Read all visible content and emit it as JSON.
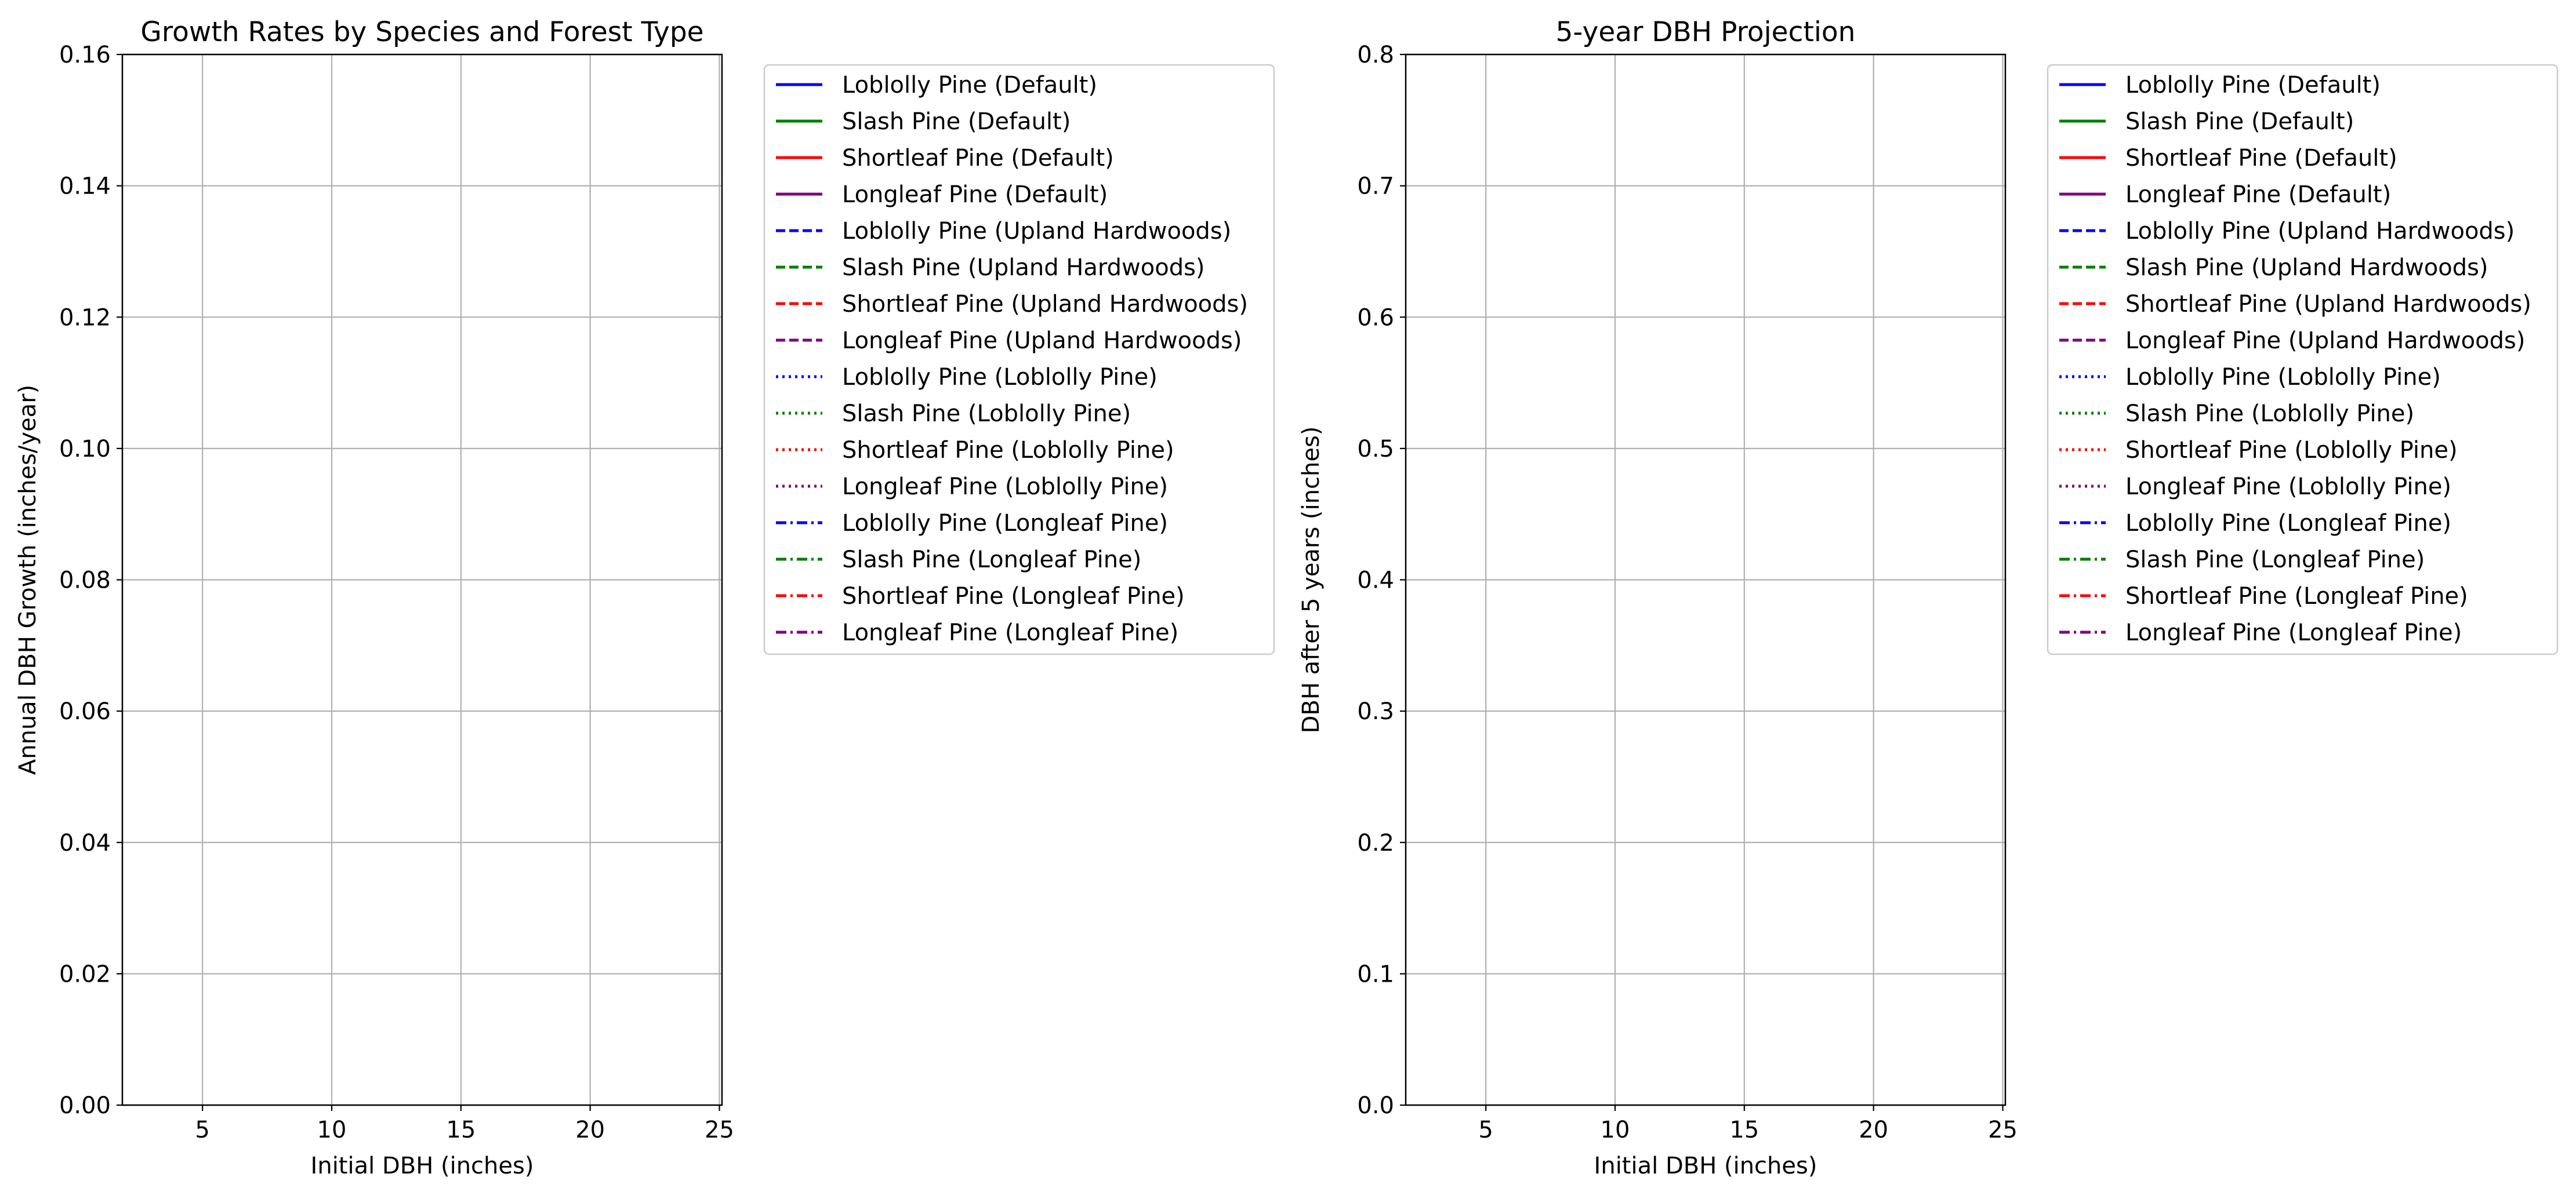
{
  "chart_data": [
    {
      "type": "line",
      "title": "Growth Rates by Species and Forest Type",
      "xlabel": "Initial DBH (inches)",
      "ylabel": "Annual DBH Growth (inches/year)",
      "xlim": [
        1.9,
        25.1
      ],
      "ylim": [
        0,
        0.16
      ],
      "xticks": [
        5,
        10,
        15,
        20,
        25
      ],
      "xtick_labels": [
        "5",
        "10",
        "15",
        "20",
        "25"
      ],
      "yticks": [
        0,
        0.02,
        0.04,
        0.06,
        0.08,
        0.1,
        0.12,
        0.14,
        0.16
      ],
      "ytick_labels": [
        "0.00",
        "0.02",
        "0.04",
        "0.06",
        "0.08",
        "0.10",
        "0.12",
        "0.14",
        "0.16"
      ],
      "grid": true,
      "legend_position": "outside-upper-right",
      "series": [
        {
          "name": "Loblolly Pine (Default)",
          "color": "#0000ff",
          "style": "solid",
          "values": []
        },
        {
          "name": "Slash Pine (Default)",
          "color": "#008000",
          "style": "solid",
          "values": []
        },
        {
          "name": "Shortleaf Pine (Default)",
          "color": "#ff0000",
          "style": "solid",
          "values": []
        },
        {
          "name": "Longleaf Pine (Default)",
          "color": "#800080",
          "style": "solid",
          "values": []
        },
        {
          "name": "Loblolly Pine (Upland Hardwoods)",
          "color": "#0000ff",
          "style": "dashed",
          "values": []
        },
        {
          "name": "Slash Pine (Upland Hardwoods)",
          "color": "#008000",
          "style": "dashed",
          "values": []
        },
        {
          "name": "Shortleaf Pine (Upland Hardwoods)",
          "color": "#ff0000",
          "style": "dashed",
          "values": []
        },
        {
          "name": "Longleaf Pine (Upland Hardwoods)",
          "color": "#800080",
          "style": "dashed",
          "values": []
        },
        {
          "name": "Loblolly Pine (Loblolly Pine)",
          "color": "#0000ff",
          "style": "dotted",
          "values": []
        },
        {
          "name": "Slash Pine (Loblolly Pine)",
          "color": "#008000",
          "style": "dotted",
          "values": []
        },
        {
          "name": "Shortleaf Pine (Loblolly Pine)",
          "color": "#ff0000",
          "style": "dotted",
          "values": []
        },
        {
          "name": "Longleaf Pine (Loblolly Pine)",
          "color": "#800080",
          "style": "dotted",
          "values": []
        },
        {
          "name": "Loblolly Pine (Longleaf Pine)",
          "color": "#0000ff",
          "style": "dashdot",
          "values": []
        },
        {
          "name": "Slash Pine (Longleaf Pine)",
          "color": "#008000",
          "style": "dashdot",
          "values": []
        },
        {
          "name": "Shortleaf Pine (Longleaf Pine)",
          "color": "#ff0000",
          "style": "dashdot",
          "values": []
        },
        {
          "name": "Longleaf Pine (Longleaf Pine)",
          "color": "#800080",
          "style": "dashdot",
          "values": []
        }
      ]
    },
    {
      "type": "line",
      "title": "5-year DBH Projection",
      "xlabel": "Initial DBH (inches)",
      "ylabel": "DBH after 5 years (inches)",
      "xlim": [
        1.9,
        25.1
      ],
      "ylim": [
        0,
        0.8
      ],
      "xticks": [
        5,
        10,
        15,
        20,
        25
      ],
      "xtick_labels": [
        "5",
        "10",
        "15",
        "20",
        "25"
      ],
      "yticks": [
        0,
        0.1,
        0.2,
        0.3,
        0.4,
        0.5,
        0.6,
        0.7,
        0.8
      ],
      "ytick_labels": [
        "0.0",
        "0.1",
        "0.2",
        "0.3",
        "0.4",
        "0.5",
        "0.6",
        "0.7",
        "0.8"
      ],
      "grid": true,
      "legend_position": "outside-upper-right",
      "series": [
        {
          "name": "Loblolly Pine (Default)",
          "color": "#0000ff",
          "style": "solid",
          "values": []
        },
        {
          "name": "Slash Pine (Default)",
          "color": "#008000",
          "style": "solid",
          "values": []
        },
        {
          "name": "Shortleaf Pine (Default)",
          "color": "#ff0000",
          "style": "solid",
          "values": []
        },
        {
          "name": "Longleaf Pine (Default)",
          "color": "#800080",
          "style": "solid",
          "values": []
        },
        {
          "name": "Loblolly Pine (Upland Hardwoods)",
          "color": "#0000ff",
          "style": "dashed",
          "values": []
        },
        {
          "name": "Slash Pine (Upland Hardwoods)",
          "color": "#008000",
          "style": "dashed",
          "values": []
        },
        {
          "name": "Shortleaf Pine (Upland Hardwoods)",
          "color": "#ff0000",
          "style": "dashed",
          "values": []
        },
        {
          "name": "Longleaf Pine (Upland Hardwoods)",
          "color": "#800080",
          "style": "dashed",
          "values": []
        },
        {
          "name": "Loblolly Pine (Loblolly Pine)",
          "color": "#0000ff",
          "style": "dotted",
          "values": []
        },
        {
          "name": "Slash Pine (Loblolly Pine)",
          "color": "#008000",
          "style": "dotted",
          "values": []
        },
        {
          "name": "Shortleaf Pine (Loblolly Pine)",
          "color": "#ff0000",
          "style": "dotted",
          "values": []
        },
        {
          "name": "Longleaf Pine (Loblolly Pine)",
          "color": "#800080",
          "style": "dotted",
          "values": []
        },
        {
          "name": "Loblolly Pine (Longleaf Pine)",
          "color": "#0000ff",
          "style": "dashdot",
          "values": []
        },
        {
          "name": "Slash Pine (Longleaf Pine)",
          "color": "#008000",
          "style": "dashdot",
          "values": []
        },
        {
          "name": "Shortleaf Pine (Longleaf Pine)",
          "color": "#ff0000",
          "style": "dashdot",
          "values": []
        },
        {
          "name": "Longleaf Pine (Longleaf Pine)",
          "color": "#800080",
          "style": "dashdot",
          "values": []
        }
      ]
    }
  ]
}
